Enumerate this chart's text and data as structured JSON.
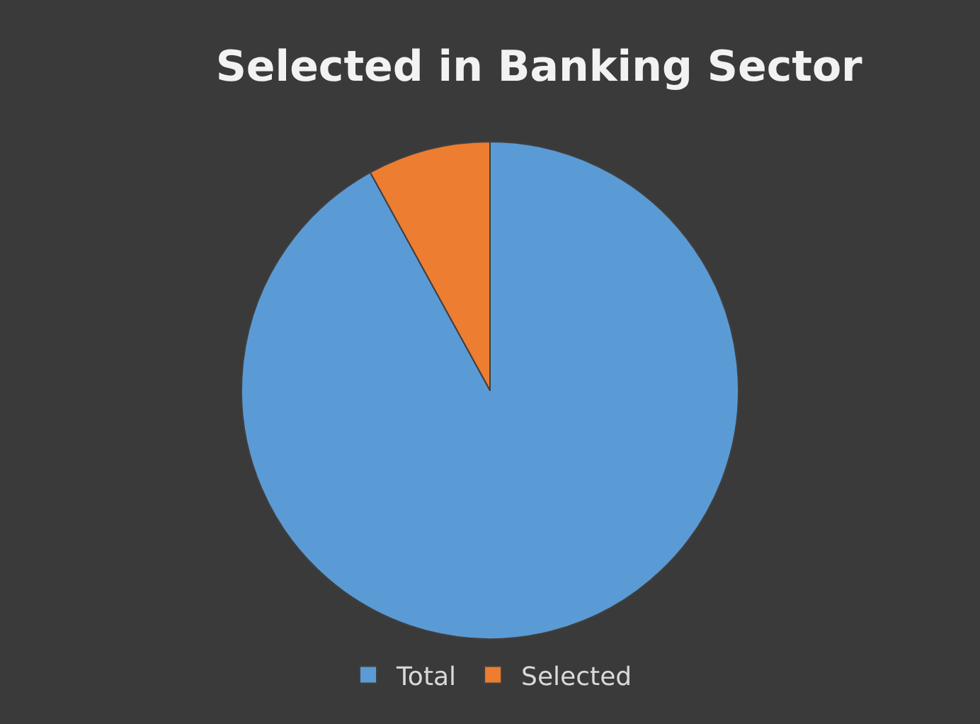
{
  "chart_data": {
    "type": "pie",
    "title": "Selected in Banking Sector",
    "categories": [
      "Total",
      "Selected"
    ],
    "values": [
      92,
      8
    ],
    "colors": [
      "#5b9bd5",
      "#ed7d31"
    ],
    "legend": "bottom"
  }
}
